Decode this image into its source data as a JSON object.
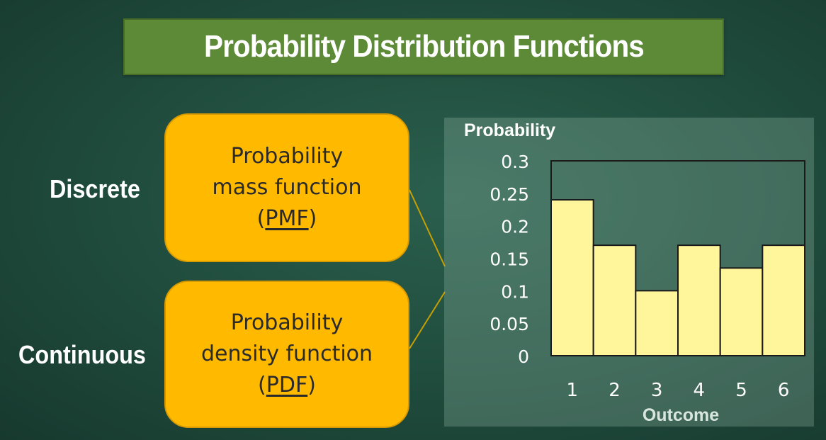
{
  "title": "Probability Distribution Functions",
  "labels": {
    "discrete": "Discrete",
    "continuous": "Continuous"
  },
  "pmf_box": {
    "line1": "Probability",
    "line2": "mass function",
    "open": "(",
    "abbr": "PMF",
    "close": ")"
  },
  "pdf_box": {
    "line1": "Probability",
    "line2": "density function",
    "open": "(",
    "abbr": "PDF",
    "close": ")"
  },
  "colors": {
    "title_bg": "#5d8a36",
    "box_fill": "#ffba00",
    "bar_fill": "#fff59a",
    "background": "#1f4b3c"
  },
  "chart_data": {
    "type": "bar",
    "ylabel": "Probability",
    "xlabel": "Outcome",
    "categories": [
      "1",
      "2",
      "3",
      "4",
      "5",
      "6"
    ],
    "values": [
      0.24,
      0.17,
      0.1,
      0.17,
      0.135,
      0.17
    ],
    "ylim": [
      0,
      0.3
    ],
    "yticks": [
      "0",
      "0.05",
      "0.1",
      "0.15",
      "0.2",
      "0.25",
      "0.3"
    ],
    "grid": false,
    "legend": "none"
  }
}
